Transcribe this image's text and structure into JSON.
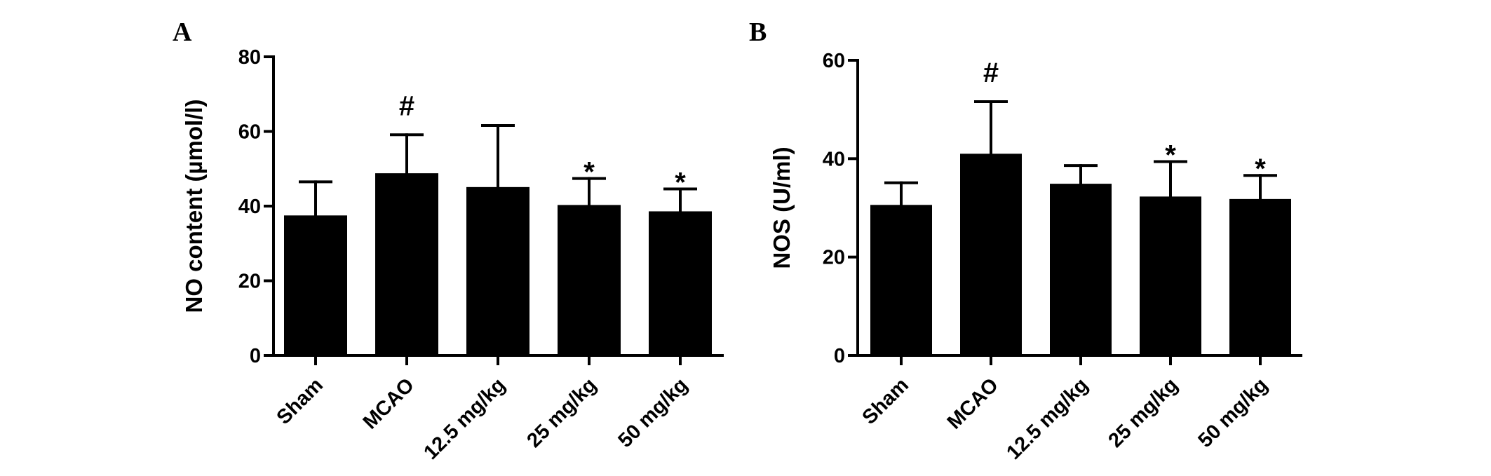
{
  "figure": {
    "panels": [
      "A",
      "B"
    ]
  },
  "chart_data": [
    {
      "type": "bar",
      "panel": "A",
      "categories": [
        "Sham",
        "MCAO",
        "12.5 mg/kg",
        "25 mg/kg",
        "50 mg/kg"
      ],
      "values": [
        37.5,
        48.8,
        45.1,
        40.3,
        38.6
      ],
      "errors": [
        9.0,
        10.3,
        16.5,
        7.1,
        6.0
      ],
      "annotations": [
        "",
        "#",
        "",
        "*",
        "*"
      ],
      "title": "",
      "xlabel": "",
      "ylabel": "NO content (µmol/l)",
      "ylim": [
        0,
        80
      ],
      "yticks": [
        0,
        20,
        40,
        60,
        80
      ],
      "grid": false,
      "legend": "none",
      "bar_color": "#000000"
    },
    {
      "type": "bar",
      "panel": "B",
      "categories": [
        "Sham",
        "MCAO",
        "12.5 mg/kg",
        "25 mg/kg",
        "50 mg/kg"
      ],
      "values": [
        30.6,
        41.0,
        34.9,
        32.3,
        31.8
      ],
      "errors": [
        4.5,
        10.6,
        3.7,
        7.1,
        4.8
      ],
      "annotations": [
        "",
        "#",
        "",
        "*",
        "*"
      ],
      "title": "",
      "xlabel": "",
      "ylabel": "NOS (U/ml)",
      "ylim": [
        0,
        60
      ],
      "yticks": [
        0,
        20,
        40,
        60
      ],
      "grid": false,
      "legend": "none",
      "bar_color": "#000000"
    }
  ]
}
